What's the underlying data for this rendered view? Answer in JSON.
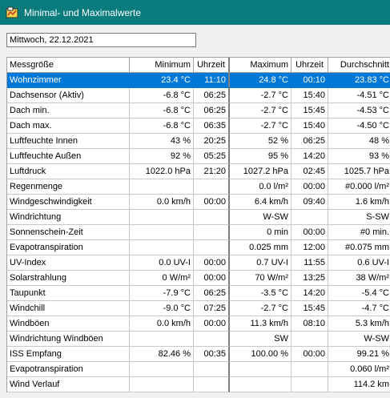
{
  "window": {
    "title": "Minimal- und Maximalwerte",
    "icon": "app-icon"
  },
  "date_field": {
    "value": "Mittwoch, 22.12.2021"
  },
  "table": {
    "headers": [
      "Messgröße",
      "Minimum",
      "Uhrzeit",
      "Maximum",
      "Uhrzeit",
      "Durchschnitt"
    ],
    "selected_row": 0,
    "rows": [
      [
        "Wohnzimmer",
        "23.4 °C",
        "11:10",
        "24.8 °C",
        "00:10",
        "23.83 °C"
      ],
      [
        "Dachsensor (Aktiv)",
        "-6.8 °C",
        "06:25",
        "-2.7 °C",
        "15:40",
        "-4.51 °C"
      ],
      [
        "Dach min.",
        "-6.8 °C",
        "06:25",
        "-2.7 °C",
        "15:45",
        "-4.53 °C"
      ],
      [
        "Dach max.",
        "-6.8 °C",
        "06:35",
        "-2.7 °C",
        "15:40",
        "-4.50 °C"
      ],
      [
        "Luftfeuchte Innen",
        "43 %",
        "20:25",
        "52 %",
        "06:25",
        "48 %"
      ],
      [
        "Luftfeuchte Außen",
        "92 %",
        "05:25",
        "95 %",
        "14:20",
        "93 %"
      ],
      [
        "Luftdruck",
        "1022.0 hPa",
        "21:20",
        "1027.2 hPa",
        "02:45",
        "1025.7 hPa"
      ],
      [
        "Regenmenge",
        "",
        "",
        "0.0 l/m²",
        "00:00",
        "#0.000 l/m²"
      ],
      [
        "Windgeschwindigkeit",
        "0.0 km/h",
        "00:00",
        "6.4 km/h",
        "09:40",
        "1.6 km/h"
      ],
      [
        "Windrichtung",
        "",
        "",
        "W-SW",
        "",
        "S-SW"
      ],
      [
        "Sonnenschein-Zeit",
        "",
        "",
        "0 min",
        "00:00",
        "#0 min."
      ],
      [
        "Evapotranspiration",
        "",
        "",
        "0.025 mm",
        "12:00",
        "#0.075 mm"
      ],
      [
        "UV-Index",
        "0.0 UV-I",
        "00:00",
        "0.7 UV-I",
        "11:55",
        "0.6 UV-I"
      ],
      [
        "Solarstrahlung",
        "0 W/m²",
        "00:00",
        "70 W/m²",
        "13:25",
        "38 W/m²"
      ],
      [
        "Taupunkt",
        "-7.9 °C",
        "06:25",
        "-3.5 °C",
        "14:20",
        "-5.4 °C"
      ],
      [
        "Windchill",
        "-9.0 °C",
        "07:25",
        "-2.7 °C",
        "15:45",
        "-4.7 °C"
      ],
      [
        "Windböen",
        "0.0 km/h",
        "00:00",
        "11.3 km/h",
        "08:10",
        "5.3 km/h"
      ],
      [
        "Windrichtung Windböen",
        "",
        "",
        "SW",
        "",
        "W-SW"
      ],
      [
        "ISS Empfang",
        "82.46 %",
        "00:35",
        "100.00 %",
        "00:00",
        "99.21 %"
      ],
      [
        "Evapotranspiration",
        "",
        "",
        "",
        "",
        "0.060 l/m²"
      ],
      [
        "Wind Verlauf",
        "",
        "",
        "",
        "",
        "114.2 km"
      ]
    ]
  }
}
